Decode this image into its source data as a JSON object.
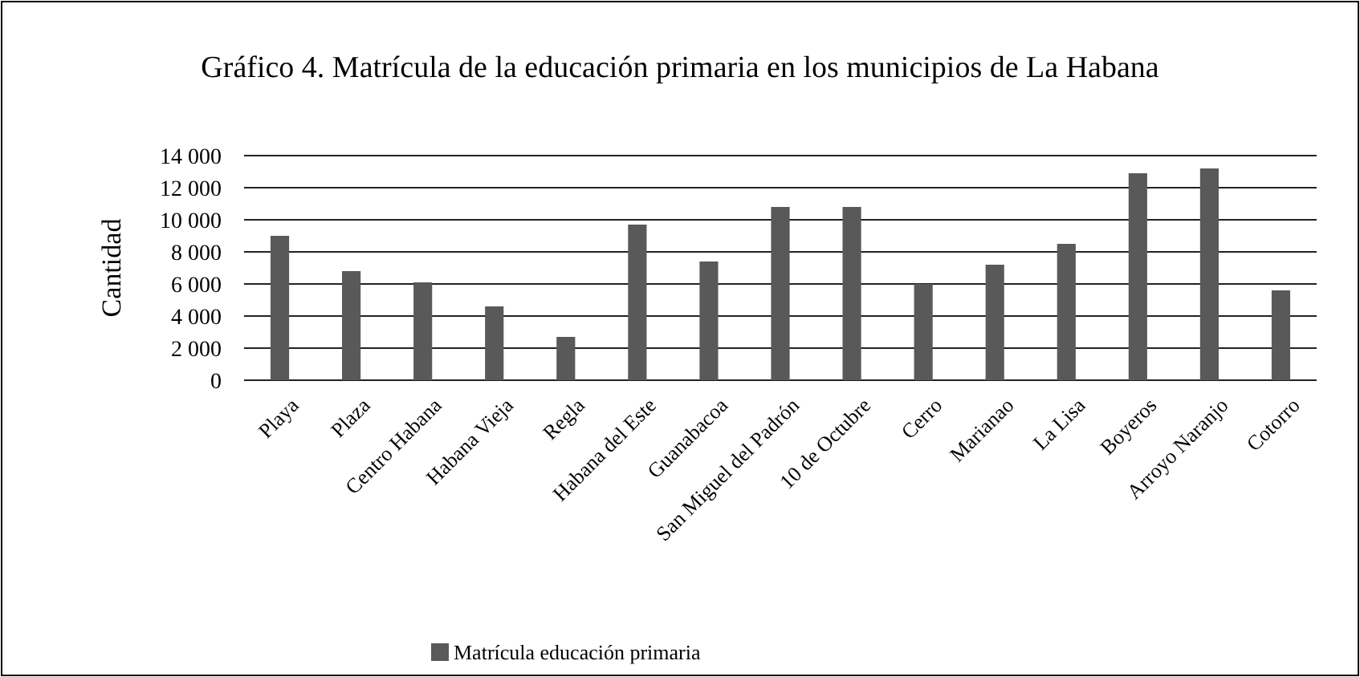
{
  "chart_data": {
    "type": "bar",
    "title": "Gráfico 4. Matrícula de la educación primaria en los municipios de La Habana",
    "ylabel": "Cantidad",
    "categories": [
      "Playa",
      "Plaza",
      "Centro Habana",
      "Habana Vieja",
      "Regla",
      "Habana del Este",
      "Guanabacoa",
      "San Miguel del Padrón",
      "10 de Octubre",
      "Cerro",
      "Marianao",
      "La Lisa",
      "Boyeros",
      "Arroyo Naranjo",
      "Cotorro"
    ],
    "series": [
      {
        "name": "Matrícula educación primaria",
        "color": "#595959",
        "values": [
          9000,
          6800,
          6100,
          4600,
          2700,
          9700,
          7400,
          10800,
          10800,
          6000,
          7200,
          8500,
          12900,
          13200,
          5600
        ]
      }
    ],
    "ylim": [
      0,
      14000
    ],
    "yticks": [
      {
        "value": 0,
        "label": "0"
      },
      {
        "value": 2000,
        "label": "2 000"
      },
      {
        "value": 4000,
        "label": "4 000"
      },
      {
        "value": 6000,
        "label": "6 000"
      },
      {
        "value": 8000,
        "label": "8 000"
      },
      {
        "value": 10000,
        "label": "10 000"
      },
      {
        "value": 12000,
        "label": "12 000"
      },
      {
        "value": 14000,
        "label": "14 000"
      }
    ],
    "grid": "y",
    "legend": "bottom"
  }
}
